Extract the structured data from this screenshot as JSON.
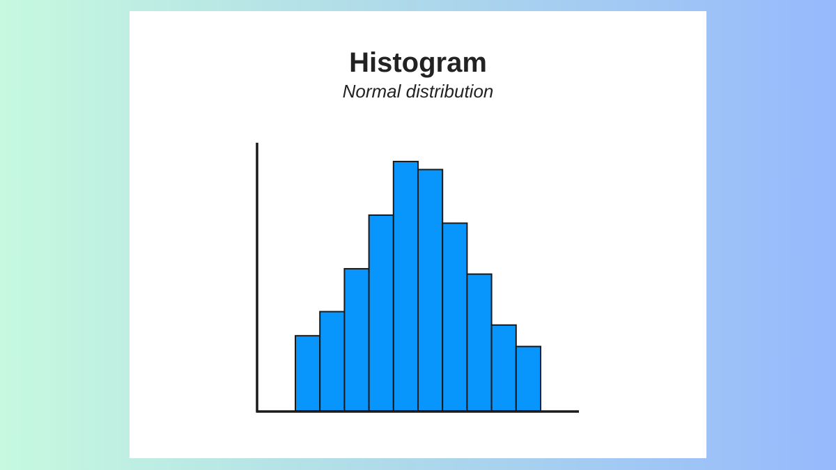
{
  "chart_data": {
    "type": "bar",
    "title": "Histogram",
    "subtitle": "Normal distribution",
    "xlabel": "",
    "ylabel": "",
    "values": [
      28,
      37,
      53,
      73,
      93,
      90,
      70,
      51,
      32,
      24
    ],
    "ylim": [
      0,
      100
    ],
    "grid": false,
    "bar_color": "#0896fc",
    "edge_color": "#1a1a1a"
  }
}
